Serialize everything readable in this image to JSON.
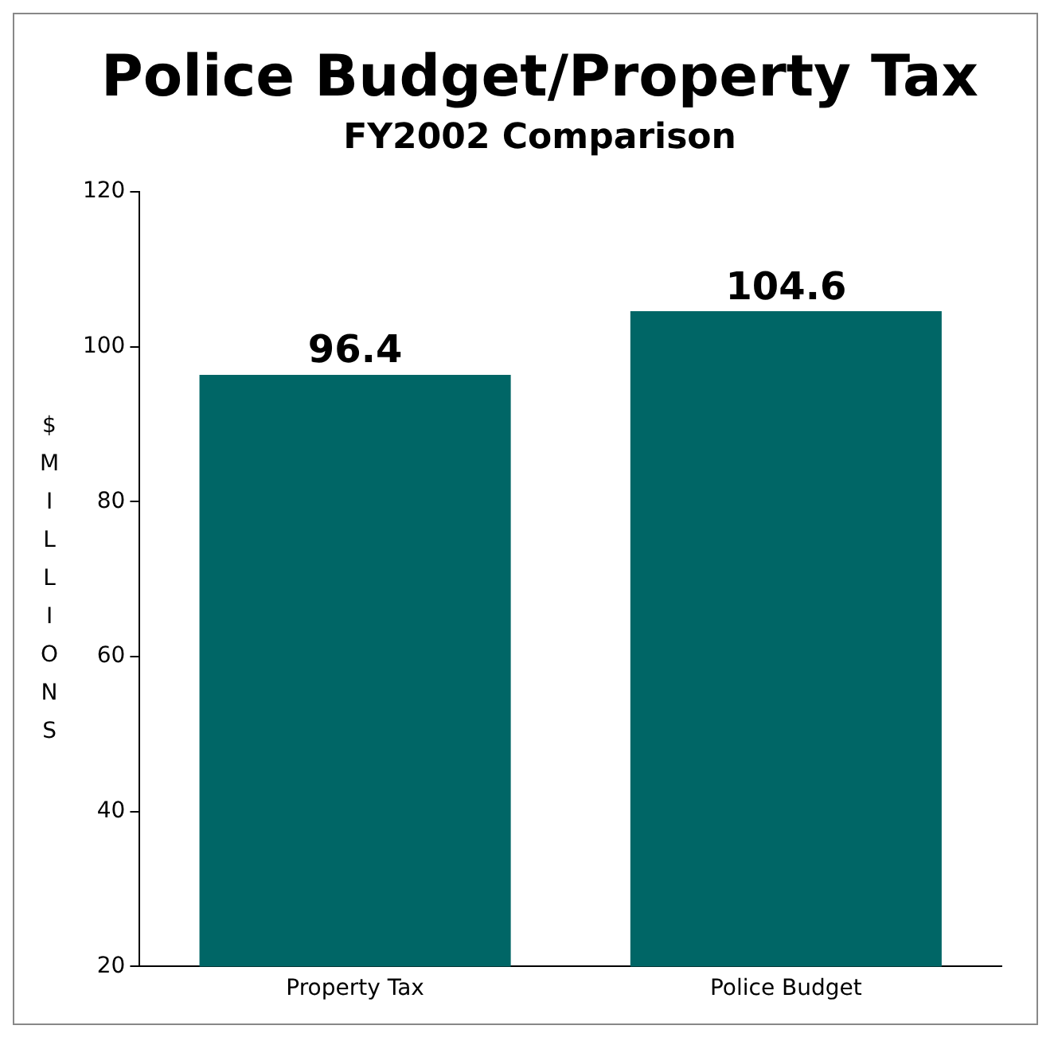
{
  "chart_data": {
    "type": "bar",
    "title": "Police Budget/Property Tax",
    "subtitle": "FY2002 Comparison",
    "ylabel": "$MILLIONS",
    "categories": [
      "Property Tax",
      "Police Budget"
    ],
    "values": [
      96.4,
      104.6
    ],
    "color": "#006666",
    "ylim": [
      20,
      120
    ],
    "yticks": [
      20,
      40,
      60,
      80,
      100,
      120
    ],
    "grid": false,
    "legend": false,
    "data_labels": true
  }
}
